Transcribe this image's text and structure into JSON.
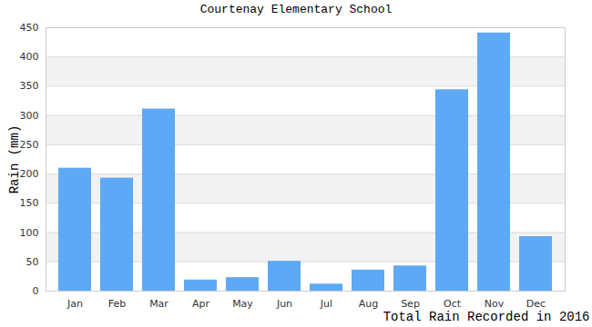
{
  "chart_data": {
    "type": "bar",
    "title": "Courtenay Elementary School",
    "xlabel": "Total Rain Recorded in 2016",
    "ylabel": "Rain (mm)",
    "categories": [
      "Jan",
      "Feb",
      "Mar",
      "Apr",
      "May",
      "Jun",
      "Jul",
      "Aug",
      "Sep",
      "Oct",
      "Nov",
      "Dec"
    ],
    "values": [
      210,
      193,
      311,
      19,
      23,
      51,
      12,
      36,
      43,
      344,
      441,
      93
    ],
    "color": "#5ea9f5",
    "ylim": [
      0,
      450
    ],
    "yticks": [
      0,
      50,
      100,
      150,
      200,
      250,
      300,
      350,
      400,
      450
    ],
    "grid": true
  }
}
